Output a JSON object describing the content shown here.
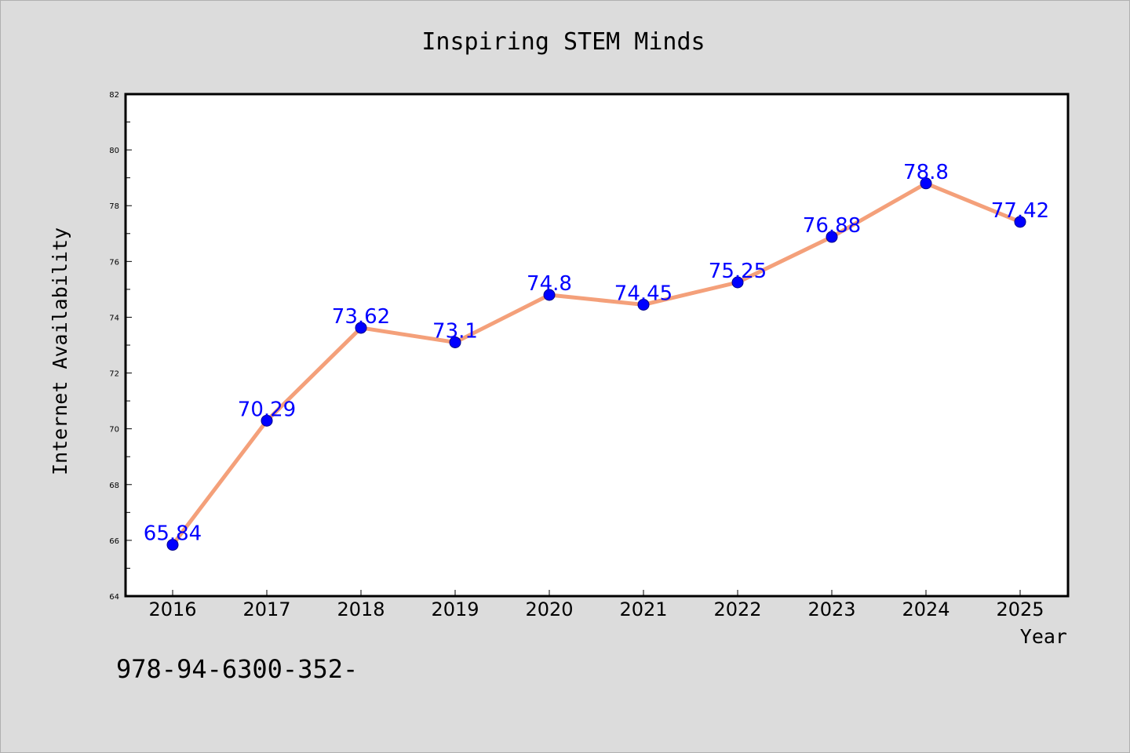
{
  "chart_data": {
    "type": "line",
    "title": "Inspiring STEM Minds",
    "xlabel": "Year",
    "ylabel": "Internet Availability",
    "categories": [
      "2016",
      "2017",
      "2018",
      "2019",
      "2020",
      "2021",
      "2022",
      "2023",
      "2024",
      "2025"
    ],
    "series": [
      {
        "values": [
          65.84,
          70.29,
          73.62,
          73.1,
          74.8,
          74.45,
          75.25,
          76.88,
          78.8,
          77.42
        ],
        "line_color": "#f4a07a",
        "marker_color": "#0000ff"
      }
    ],
    "data_labels": [
      "65.84",
      "70.29",
      "73.62",
      "73.1",
      "74.8",
      "74.45",
      "75.25",
      "76.88",
      "78.8",
      "77.42"
    ],
    "ylim": [
      64,
      82
    ],
    "yticks": [
      "64",
      "66",
      "68",
      "70",
      "72",
      "74",
      "76",
      "78",
      "80",
      "82"
    ],
    "grid": false,
    "legend": "none",
    "label_color": "#0000ff",
    "footer_text": "978-94-6300-352-"
  }
}
